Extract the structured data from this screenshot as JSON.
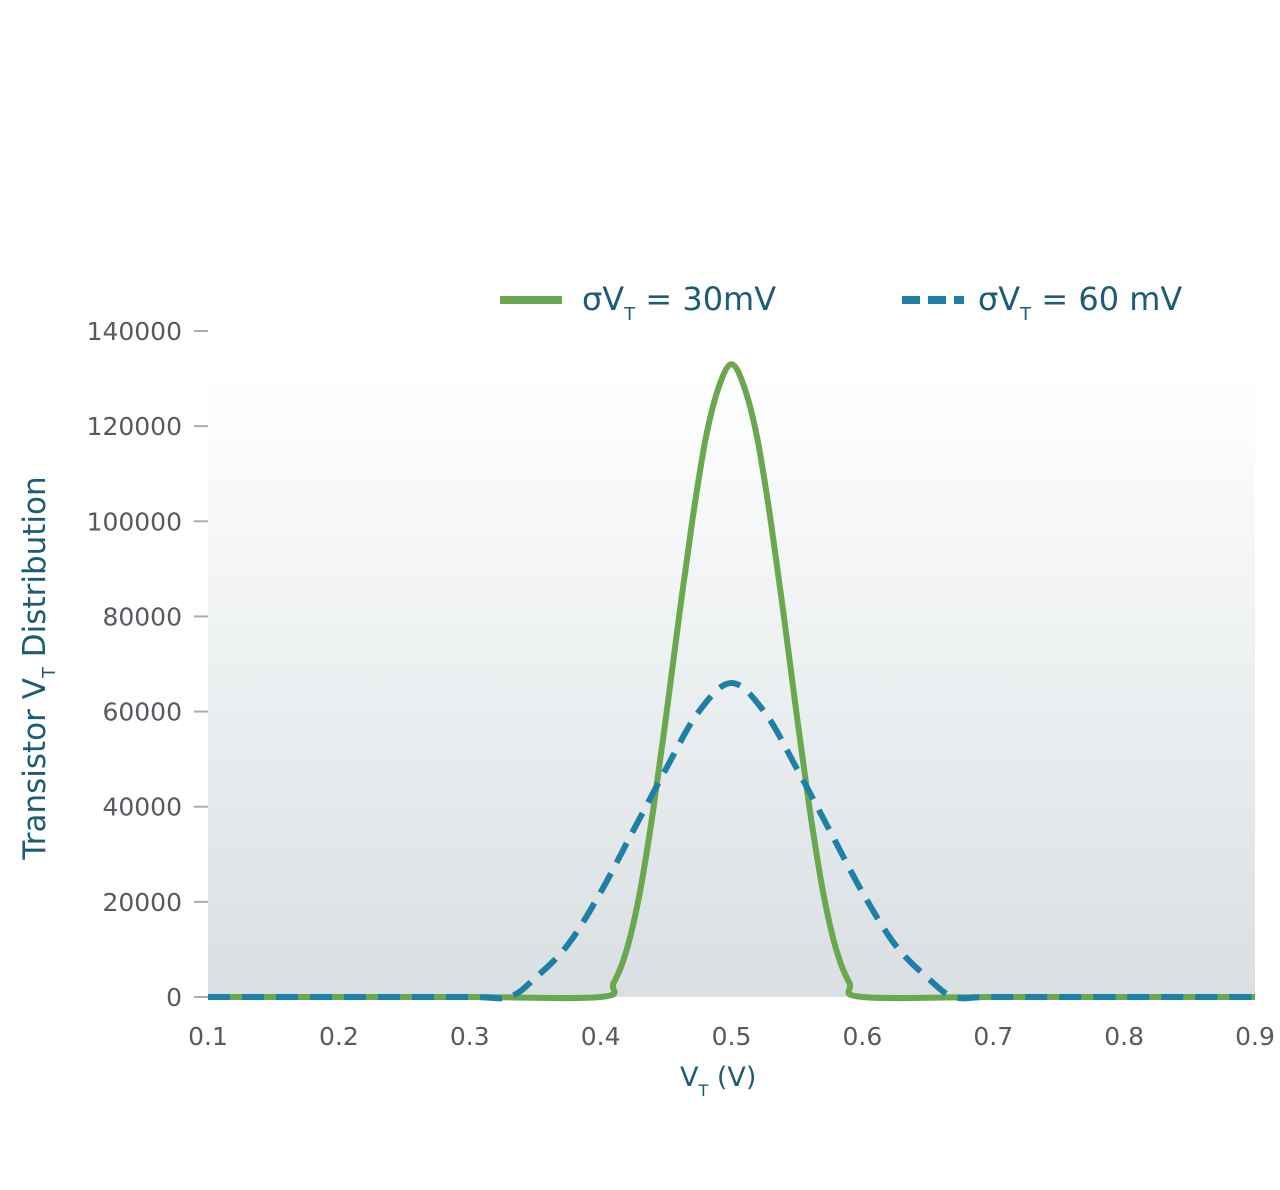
{
  "chart_data": {
    "type": "line",
    "title": "",
    "xlabel": {
      "main": "V",
      "sub": "T",
      "rest": " (V)"
    },
    "ylabel": {
      "main": "Transistor V",
      "sub": "T",
      "rest": " Distribution"
    },
    "xlim": [
      0.1,
      0.9
    ],
    "ylim": [
      0,
      140000
    ],
    "x_ticks": [
      "0.1",
      "0.2",
      "0.3",
      "0.4",
      "0.5",
      "0.6",
      "0.7",
      "0.8",
      "0.9"
    ],
    "y_ticks": [
      "0",
      "20000",
      "40000",
      "60000",
      "80000",
      "100000",
      "120000",
      "140000"
    ],
    "grid": false,
    "legend_position": "top",
    "series": [
      {
        "name": {
          "pre": "σV",
          "sub": "T",
          "post": " = 30mV"
        },
        "style": "solid",
        "color": "#6aa84f",
        "x": [
          0.1,
          0.2,
          0.3,
          0.4,
          0.41,
          0.42,
          0.43,
          0.44,
          0.45,
          0.46,
          0.47,
          0.48,
          0.49,
          0.5,
          0.51,
          0.52,
          0.53,
          0.54,
          0.55,
          0.56,
          0.57,
          0.58,
          0.59,
          0.6,
          0.7,
          0.8,
          0.9
        ],
        "y": [
          0,
          0,
          0,
          0,
          3000,
          10000,
          22000,
          39000,
          59000,
          80000,
          100000,
          117000,
          128000,
          133000,
          128000,
          117000,
          100000,
          80000,
          59000,
          39000,
          22000,
          10000,
          3000,
          0,
          0,
          0,
          0
        ]
      },
      {
        "name": {
          "pre": "σV",
          "sub": "T",
          "post": " = 60 mV"
        },
        "style": "dashed",
        "color": "#1d80a6",
        "x": [
          0.1,
          0.2,
          0.3,
          0.33,
          0.35,
          0.375,
          0.4,
          0.425,
          0.45,
          0.475,
          0.5,
          0.525,
          0.55,
          0.575,
          0.6,
          0.625,
          0.65,
          0.67,
          0.7,
          0.8,
          0.9
        ],
        "y": [
          0,
          0,
          0,
          0,
          4000,
          11000,
          22000,
          35000,
          48000,
          60000,
          66000,
          60000,
          48000,
          35000,
          22000,
          11000,
          4000,
          0,
          0,
          0,
          0
        ]
      }
    ]
  }
}
